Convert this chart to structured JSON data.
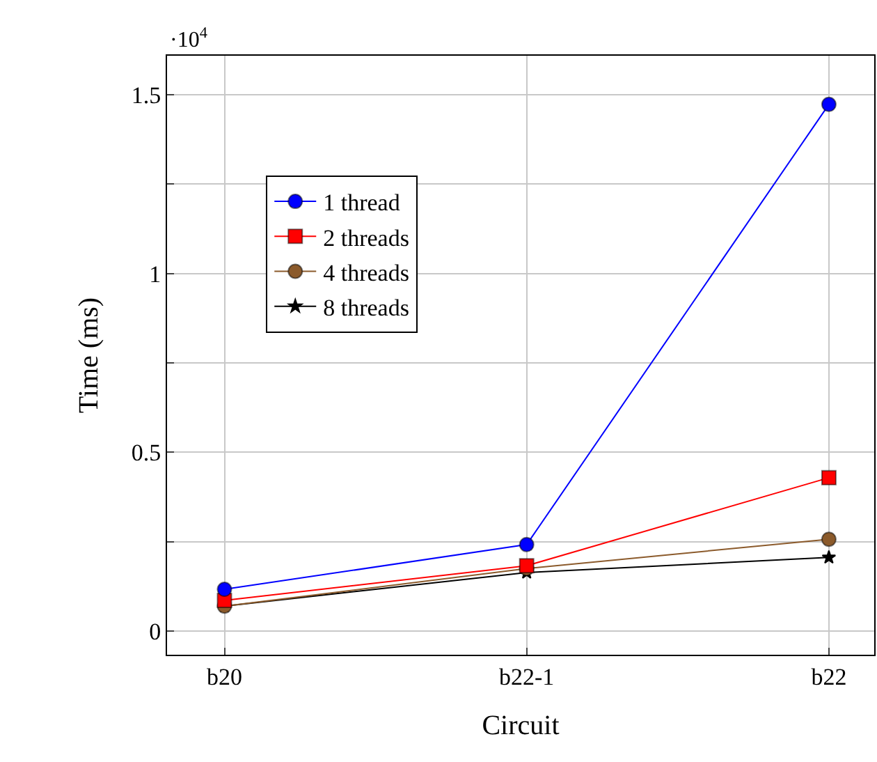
{
  "chart_data": {
    "type": "line",
    "xlabel": "Circuit",
    "ylabel": "Time (ms)",
    "categories": [
      "b20",
      "b22-1",
      "b22"
    ],
    "series": [
      {
        "name": "1 thread",
        "color": "#0000ff",
        "marker": "circle",
        "values": [
          0.117,
          0.242,
          1.473
        ]
      },
      {
        "name": "2 threads",
        "color": "#ff0000",
        "marker": "square",
        "values": [
          0.086,
          0.183,
          0.429
        ]
      },
      {
        "name": "4 threads",
        "color": "#8b5a2b",
        "marker": "circle",
        "values": [
          0.07,
          0.175,
          0.257
        ]
      },
      {
        "name": "8 threads",
        "color": "#000000",
        "marker": "star",
        "values": [
          0.07,
          0.164,
          0.206
        ]
      }
    ],
    "ylim": [
      -0.066,
      1.609
    ],
    "yticks": [
      0,
      {
        "value": 0.25,
        "label": null
      },
      0.5,
      {
        "value": 0.75,
        "label": null
      },
      1,
      {
        "value": 1.25,
        "label": null
      },
      1.5
    ],
    "annotations": [
      "·10$^{4}$"
    ],
    "grid": true,
    "legend": "top left",
    "line_style": "solid"
  }
}
